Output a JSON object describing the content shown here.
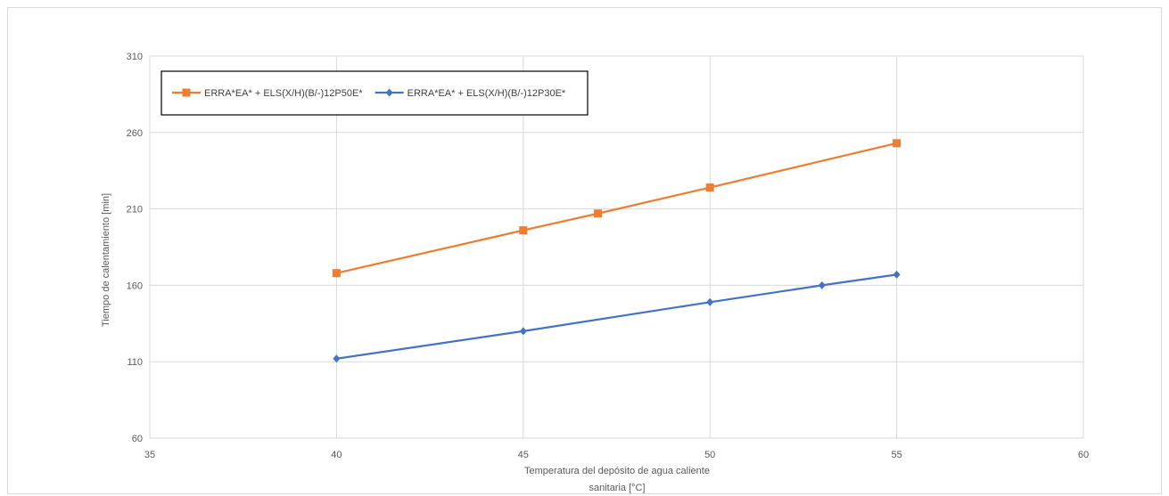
{
  "chart_data": {
    "type": "line",
    "xlabel_lines": [
      "Temperatura del depósito de agua caliente",
      "sanitaria [°C]"
    ],
    "ylabel": "Tiempo de calentamiento [min]",
    "xlim": [
      35,
      60
    ],
    "ylim": [
      60,
      310
    ],
    "x_ticks": [
      "35",
      "40",
      "45",
      "50",
      "55",
      "60"
    ],
    "y_ticks": [
      "60",
      "110",
      "160",
      "210",
      "260",
      "310"
    ],
    "grid": true,
    "legend_position": "top-left",
    "series": [
      {
        "name": "ERRA*EA* + ELS(X/H)(B/-)12P50E*",
        "color": "#ed7d31",
        "marker": "square",
        "x": [
          40,
          45,
          47,
          50,
          55
        ],
        "y": [
          168,
          196,
          207,
          224,
          253
        ]
      },
      {
        "name": "ERRA*EA* + ELS(X/H)(B/-)12P30E*",
        "color": "#4472c4",
        "marker": "diamond",
        "x": [
          40,
          45,
          50,
          53,
          55
        ],
        "y": [
          112,
          130,
          149,
          160,
          167
        ]
      }
    ]
  }
}
